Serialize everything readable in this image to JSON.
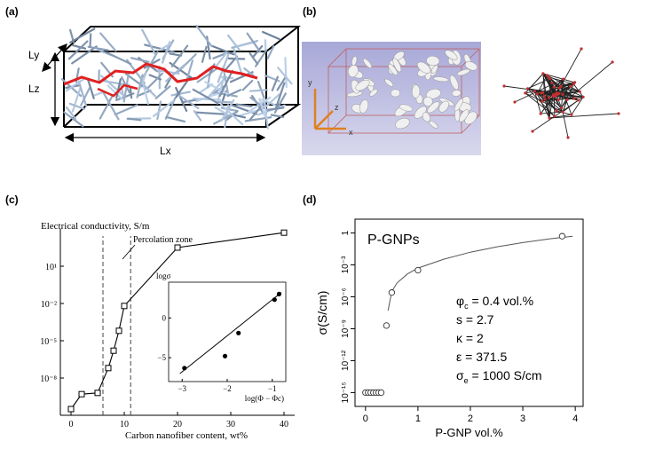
{
  "panels": {
    "a": {
      "label": "(a)",
      "dims": {
        "ly": "Ly",
        "lz": "Lz",
        "lx": "Lx"
      }
    },
    "b": {
      "label": "(b)",
      "axes": {
        "y": "y",
        "x": "x",
        "z": "z"
      }
    },
    "c": {
      "label": "(c)"
    },
    "d": {
      "label": "(d)"
    }
  },
  "chart_data": [
    {
      "id": "c",
      "type": "line",
      "title": "Electrical conductivity, S/m",
      "xlabel": "Carbon nanofiber content, wt%",
      "ylabel": "Electrical conductivity, S/m",
      "xlim": [
        -2,
        42
      ],
      "ylim_log10": [
        -11,
        4
      ],
      "x_ticks": [
        0,
        10,
        20,
        30,
        40
      ],
      "x_tick_labels": [
        "0",
        "10",
        "20",
        "30",
        "40"
      ],
      "y_ticks_log10": [
        -8,
        -5,
        -2,
        1
      ],
      "y_tick_labels": [
        "10⁻⁸",
        "10⁻⁵",
        "10⁻²",
        "10¹"
      ],
      "series": [
        {
          "name": "conductivity",
          "x": [
            0,
            2,
            5,
            7,
            8,
            9,
            10,
            20,
            40
          ],
          "log10_y": [
            -10.5,
            -9.3,
            -9.2,
            -7.2,
            -5.8,
            -4.2,
            -2.2,
            2.5,
            3.7
          ]
        }
      ],
      "vlines": [
        6,
        11.2
      ],
      "annotation": "Percolation zone",
      "inset": {
        "ylabel": "logσ",
        "xlabel": "log(Φ − Φc)",
        "xlim": [
          -3.3,
          -0.7
        ],
        "ylim": [
          -8,
          4.5
        ],
        "x_ticks": [
          -3,
          -2,
          -1
        ],
        "x_tick_labels": [
          "−3",
          "−2",
          "−1"
        ],
        "y_ticks": [
          -5,
          0
        ],
        "y_tick_labels": [
          "−5",
          "0"
        ],
        "points": [
          {
            "x": -2.95,
            "y": -6.3
          },
          {
            "x": -2.05,
            "y": -4.8
          },
          {
            "x": -1.75,
            "y": -1.9
          },
          {
            "x": -0.95,
            "y": 2.3
          },
          {
            "x": -0.85,
            "y": 3.0
          }
        ],
        "fit_line": {
          "x": [
            -3.05,
            -0.8
          ],
          "y": [
            -7.0,
            3.2
          ]
        }
      }
    },
    {
      "id": "d",
      "type": "scatter",
      "title": "P-GNPs",
      "xlabel": "P-GNP vol.%",
      "ylabel": "σ(S/cm)",
      "xlim": [
        -0.2,
        4.15
      ],
      "ylim_log10": [
        -16.3,
        1.3
      ],
      "x_ticks": [
        0,
        1,
        2,
        3,
        4
      ],
      "x_tick_labels": [
        "0",
        "1",
        "2",
        "3",
        "4"
      ],
      "y_ticks_log10": [
        0,
        -3,
        -6,
        -9,
        -12,
        -15
      ],
      "y_tick_labels": [
        "1",
        "10⁻³",
        "10⁻⁶",
        "10⁻⁹",
        "10⁻¹²",
        "10⁻¹⁵"
      ],
      "series": [
        {
          "name": "measured",
          "x": [
            0.0,
            0.05,
            0.1,
            0.15,
            0.2,
            0.25,
            0.3,
            0.4,
            0.5,
            1.0,
            3.75
          ],
          "log10_y": [
            -15,
            -15,
            -15,
            -15,
            -15,
            -15,
            -15,
            -8.7,
            -5.6,
            -3.5,
            -0.3
          ]
        }
      ],
      "fit": {
        "name": "percolation fit",
        "x": [
          0.43,
          0.5,
          0.6,
          0.8,
          1.0,
          1.5,
          2.0,
          2.5,
          3.0,
          3.5,
          3.95
        ],
        "log10_y": [
          -7.3,
          -5.5,
          -4.7,
          -3.85,
          -3.3,
          -2.45,
          -1.8,
          -1.3,
          -0.9,
          -0.55,
          -0.3
        ]
      },
      "parameters": [
        {
          "sym": "φ",
          "sub": "c",
          "value": " = 0.4 vol.%"
        },
        {
          "sym": "s",
          "sub": "",
          "value": " = 2.7"
        },
        {
          "sym": "κ",
          "sub": "",
          "value": " = 2"
        },
        {
          "sym": "ε",
          "sub": "",
          "value": " = 371.5"
        },
        {
          "sym": "σ",
          "sub": "e",
          "value": " = 1000 S/cm"
        }
      ]
    }
  ]
}
